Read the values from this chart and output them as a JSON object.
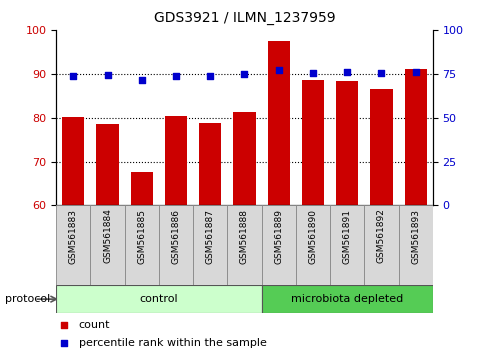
{
  "title": "GDS3921 / ILMN_1237959",
  "samples": [
    "GSM561883",
    "GSM561884",
    "GSM561885",
    "GSM561886",
    "GSM561887",
    "GSM561888",
    "GSM561889",
    "GSM561890",
    "GSM561891",
    "GSM561892",
    "GSM561893"
  ],
  "bar_values": [
    80.2,
    78.5,
    67.5,
    80.3,
    78.8,
    81.3,
    97.5,
    88.5,
    88.3,
    86.5,
    91.2
  ],
  "dot_values_right": [
    74.0,
    74.5,
    71.5,
    74.0,
    74.0,
    75.0,
    77.0,
    75.5,
    76.0,
    75.5,
    76.0
  ],
  "ylim_left": [
    60,
    100
  ],
  "ylim_right": [
    0,
    100
  ],
  "yticks_left": [
    60,
    70,
    80,
    90,
    100
  ],
  "yticks_right": [
    0,
    25,
    50,
    75,
    100
  ],
  "bar_color": "#cc0000",
  "dot_color": "#0000cc",
  "control_color": "#ccffcc",
  "microbiota_color": "#55cc55",
  "control_label": "control",
  "microbiota_label": "microbiota depleted",
  "protocol_label": "protocol",
  "legend_count": "count",
  "legend_percentile": "percentile rank within the sample",
  "n_control": 6,
  "n_microbiota": 5
}
